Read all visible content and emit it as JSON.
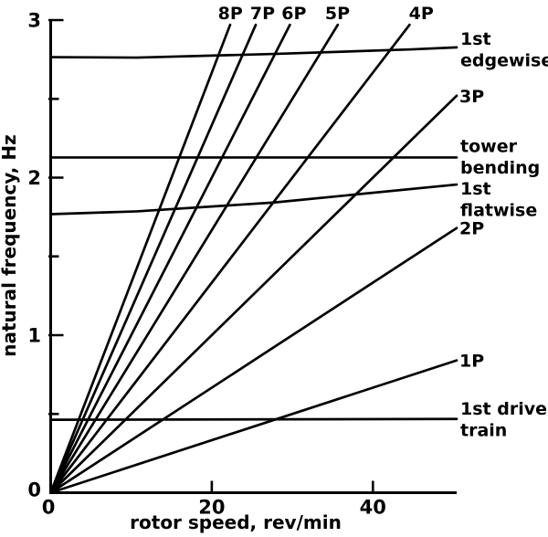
{
  "figure": {
    "background": "#ffffff",
    "ink": "#000000"
  },
  "chart_data": {
    "type": "line",
    "title": "",
    "xlabel": "rotor speed, rev/min",
    "ylabel": "natural frequency, Hz",
    "xlim": [
      0,
      50.4
    ],
    "ylim": [
      0,
      3
    ],
    "grid": false,
    "legend": "labels-on-lines",
    "x_ticks": [
      {
        "value": 0,
        "label": "0"
      },
      {
        "value": 20,
        "label": "20"
      },
      {
        "value": 40,
        "label": "40"
      }
    ],
    "y_ticks": [
      {
        "value": 0,
        "label": "0"
      },
      {
        "value": 0.5,
        "label": ""
      },
      {
        "value": 1,
        "label": "1"
      },
      {
        "value": 1.5,
        "label": ""
      },
      {
        "value": 2,
        "label": "2"
      },
      {
        "value": 2.5,
        "label": ""
      },
      {
        "value": 3,
        "label": "3"
      }
    ],
    "frequency_clip_hz": 2.97,
    "harmonic_lines": [
      {
        "label": "8P",
        "per_rev": 8,
        "label_side": "top",
        "label_omega": 22.3
      },
      {
        "label": "7P",
        "per_rev": 7,
        "label_side": "top",
        "label_omega": 26.3
      },
      {
        "label": "6P",
        "per_rev": 6,
        "label_side": "top",
        "label_omega": 30.2
      },
      {
        "label": "5P",
        "per_rev": 5,
        "label_side": "top",
        "label_omega": 35.6
      },
      {
        "label": "4P",
        "per_rev": 4,
        "label_side": "top",
        "label_omega": 46.0
      },
      {
        "label": "3P",
        "per_rev": 3,
        "label_side": "right"
      },
      {
        "label": "2P",
        "per_rev": 2,
        "label_side": "right"
      },
      {
        "label": "1P",
        "per_rev": 1,
        "label_side": "right"
      }
    ],
    "mode_lines": [
      {
        "name": "1st edgewise",
        "label_lines": [
          "1st",
          "edgewise"
        ],
        "label_dy": -3,
        "points": [
          [
            0,
            2.765
          ],
          [
            10.7,
            2.762
          ],
          [
            27.7,
            2.785
          ],
          [
            44.8,
            2.814
          ],
          [
            50.4,
            2.827
          ]
        ]
      },
      {
        "name": "tower bending",
        "label_lines": [
          "tower",
          "bending"
        ],
        "label_dy": -6,
        "points": [
          [
            0,
            2.128
          ],
          [
            50.4,
            2.128
          ]
        ]
      },
      {
        "name": "1st flatwise",
        "label_lines": [
          "1st",
          "flatwise"
        ],
        "label_dy": 11,
        "points": [
          [
            0,
            1.768
          ],
          [
            10.7,
            1.786
          ],
          [
            27.7,
            1.842
          ],
          [
            50.4,
            1.956
          ]
        ]
      },
      {
        "name": "1st drive train",
        "label_lines": [
          "1st drive",
          "train"
        ],
        "label_dy": -5,
        "points": [
          [
            0,
            0.463
          ],
          [
            50.4,
            0.468
          ]
        ]
      }
    ]
  }
}
